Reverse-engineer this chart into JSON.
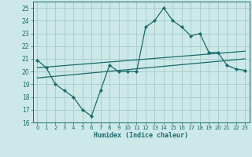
{
  "xlabel": "Humidex (Indice chaleur)",
  "bg_color": "#cce8e8",
  "grid_color": "#aacece",
  "line_color": "#1a6b6b",
  "xlim": [
    -0.5,
    23.5
  ],
  "ylim": [
    16,
    25.5
  ],
  "yticks": [
    16,
    17,
    18,
    19,
    20,
    21,
    22,
    23,
    24,
    25
  ],
  "xticks": [
    0,
    1,
    2,
    3,
    4,
    5,
    6,
    7,
    8,
    9,
    10,
    11,
    12,
    13,
    14,
    15,
    16,
    17,
    18,
    19,
    20,
    21,
    22,
    23
  ],
  "xtick_labels": [
    "0",
    "1",
    "2",
    "3",
    "4",
    "5",
    "6",
    "7",
    "8",
    "9",
    "10",
    "11",
    "12",
    "13",
    "14",
    "15",
    "16",
    "17",
    "18",
    "19",
    "20",
    "21",
    "22",
    "23"
  ],
  "humidex_x": [
    0,
    1,
    2,
    3,
    4,
    5,
    6,
    7,
    8,
    9,
    10,
    11,
    12,
    13,
    14,
    15,
    16,
    17,
    18,
    19,
    20,
    21,
    22,
    23
  ],
  "humidex_y": [
    20.9,
    20.3,
    19.0,
    18.5,
    18.0,
    17.0,
    16.5,
    18.5,
    20.5,
    20.0,
    20.0,
    20.0,
    23.5,
    24.0,
    25.0,
    24.0,
    23.5,
    22.8,
    23.0,
    21.5,
    21.5,
    20.5,
    20.2,
    20.1
  ],
  "trend1_x": [
    0,
    23
  ],
  "trend1_y": [
    19.5,
    21.0
  ],
  "trend2_x": [
    0,
    23
  ],
  "trend2_y": [
    20.3,
    21.6
  ]
}
